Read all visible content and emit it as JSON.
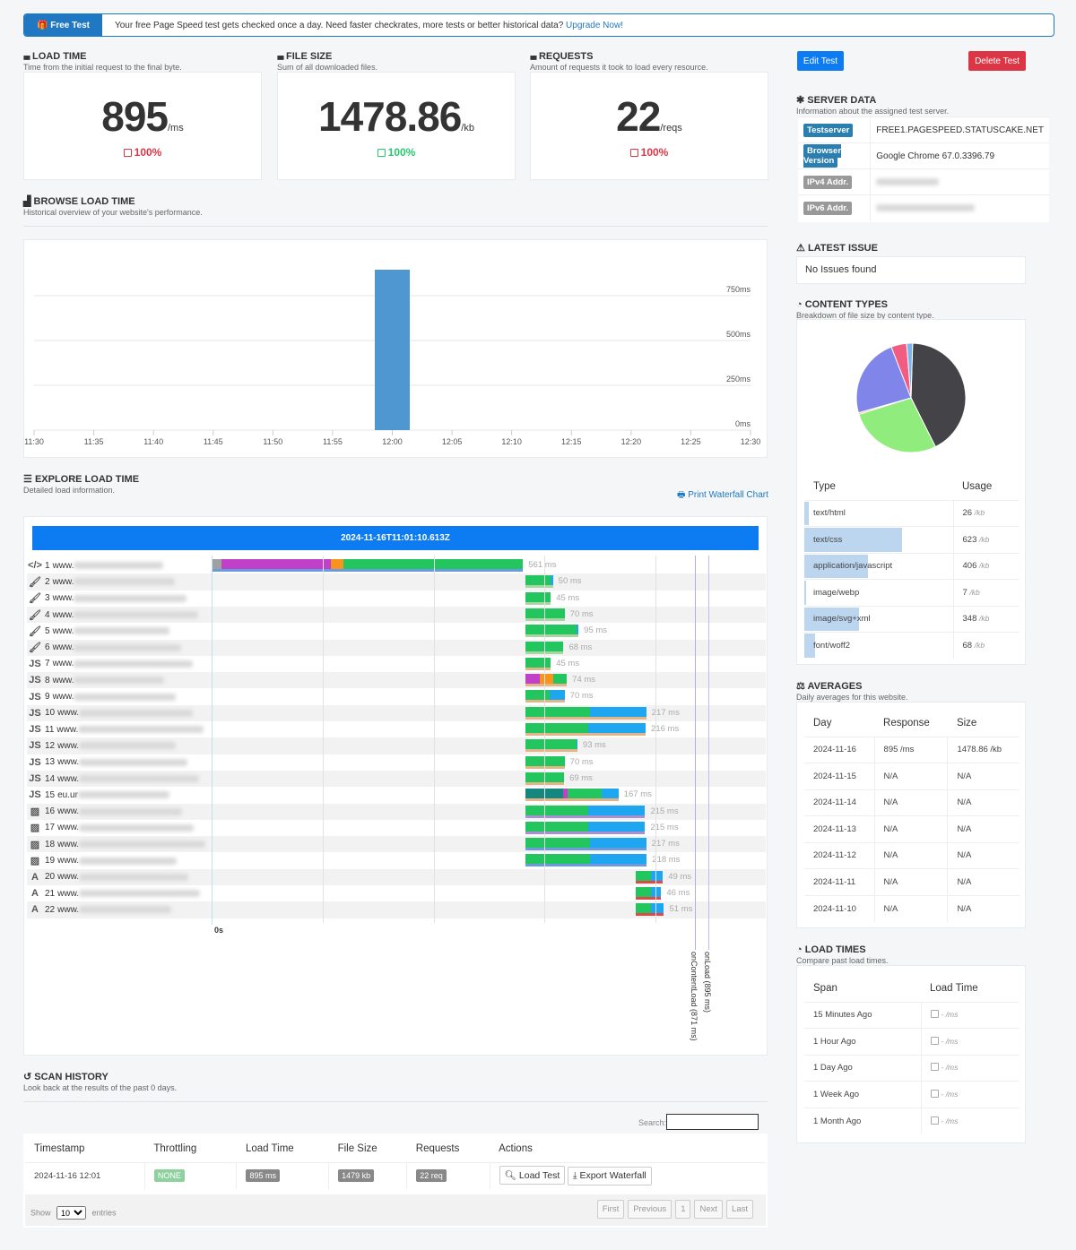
{
  "banner": {
    "tag": "Free Test",
    "message": "Your free Page Speed test gets checked once a day. Need faster checkrates, more tests or better historical data?",
    "link": "Upgrade Now!"
  },
  "stats": [
    {
      "title": "LOAD TIME",
      "subtitle": "Time from the initial request to the final byte.",
      "value": "895",
      "unit": "/ms",
      "change": "100%",
      "trend": "up",
      "color": "#dc3545"
    },
    {
      "title": "FILE SIZE",
      "subtitle": "Sum of all downloaded files.",
      "value": "1478.86",
      "unit": "/kb",
      "change": "100%",
      "trend": "down",
      "color": "#28c76f"
    },
    {
      "title": "REQUESTS",
      "subtitle": "Amount of requests it took to load every resource.",
      "value": "22",
      "unit": "/reqs",
      "change": "100%",
      "trend": "up",
      "color": "#dc3545"
    }
  ],
  "browse": {
    "title": "BROWSE LOAD TIME",
    "subtitle": "Historical overview of your website's performance."
  },
  "chart_data": {
    "type": "bar",
    "x": [
      "12:00"
    ],
    "values": [
      895
    ],
    "xticks": [
      "11:30",
      "11:35",
      "11:40",
      "11:45",
      "11:50",
      "11:55",
      "12:00",
      "12:05",
      "12:10",
      "12:15",
      "12:20",
      "12:25",
      "12:30"
    ],
    "yticks": [
      "0ms",
      "250ms",
      "500ms",
      "750ms"
    ],
    "ylim": [
      0,
      1000
    ],
    "xlim": [
      "11:30",
      "12:30"
    ],
    "grid": true,
    "color": "#4e97d1"
  },
  "explore": {
    "title": "EXPLORE LOAD TIME",
    "subtitle": "Detailed load information.",
    "print_link": "Print Waterfall Chart"
  },
  "waterfall": {
    "timestamp": "2024-11-16T11:01:10.613Z",
    "zero_label": "0s",
    "on_content_load": {
      "label": "onContentLoad (871 ms)",
      "ms": 871
    },
    "on_load": {
      "label": "onLoad (895 ms)",
      "ms": 895
    },
    "colors": {
      "gray": "#a0a0a0",
      "purple": "#c040c8",
      "orange": "#f7941d",
      "green": "#22c55e",
      "blue": "#1ea7f0",
      "teal": "#16877f"
    },
    "rows": [
      {
        "n": "1",
        "icon": "html",
        "host": "www.",
        "start": 0,
        "dur": "561 ms",
        "segs": [
          [
            "gray",
            18
          ],
          [
            "purple",
            197
          ],
          [
            "orange",
            23
          ],
          [
            "green",
            323
          ]
        ],
        "ul": "#6a9be0"
      },
      {
        "n": "2",
        "icon": "css",
        "host": "www.",
        "start": 565,
        "dur": "50 ms",
        "segs": [
          [
            "green",
            46
          ],
          [
            "blue",
            4
          ]
        ],
        "ul": "#a8d5a0"
      },
      {
        "n": "3",
        "icon": "css",
        "host": "www.",
        "start": 566,
        "dur": "45 ms",
        "segs": [
          [
            "green",
            45
          ]
        ],
        "ul": "#a8d5a0"
      },
      {
        "n": "4",
        "icon": "css",
        "host": "www.",
        "start": 566,
        "dur": "70 ms",
        "segs": [
          [
            "green",
            70
          ]
        ],
        "ul": "#a8d5a0"
      },
      {
        "n": "5",
        "icon": "css",
        "host": "www.",
        "start": 566,
        "dur": "95 ms",
        "segs": [
          [
            "green",
            92
          ],
          [
            "blue",
            3
          ]
        ],
        "ul": "#a8d5a0"
      },
      {
        "n": "6",
        "icon": "css",
        "host": "www.",
        "start": 566,
        "dur": "68 ms",
        "segs": [
          [
            "green",
            68
          ]
        ],
        "ul": "#a8d5a0"
      },
      {
        "n": "7",
        "icon": "js",
        "host": "www.",
        "start": 566,
        "dur": "45 ms",
        "segs": [
          [
            "green",
            45
          ]
        ],
        "ul": "#e3b486"
      },
      {
        "n": "8",
        "icon": "js",
        "host": "www.",
        "start": 566,
        "dur": "74 ms",
        "segs": [
          [
            "purple",
            25
          ],
          [
            "orange",
            24
          ],
          [
            "green",
            25
          ]
        ],
        "ul": "#e3b486"
      },
      {
        "n": "9",
        "icon": "js",
        "host": "www.",
        "start": 566,
        "dur": "70 ms",
        "segs": [
          [
            "green",
            43
          ],
          [
            "blue",
            27
          ]
        ],
        "ul": "#e3b486"
      },
      {
        "n": "10",
        "icon": "js",
        "host": "www.",
        "start": 566,
        "dur": "217 ms",
        "segs": [
          [
            "green",
            115
          ],
          [
            "blue",
            102
          ]
        ],
        "ul": "#e3b486"
      },
      {
        "n": "11",
        "icon": "js",
        "host": "www.",
        "start": 566,
        "dur": "216 ms",
        "segs": [
          [
            "green",
            113
          ],
          [
            "blue",
            103
          ]
        ],
        "ul": "#e3b486"
      },
      {
        "n": "12",
        "icon": "js",
        "host": "www.",
        "start": 566,
        "dur": "93 ms",
        "segs": [
          [
            "green",
            92
          ],
          [
            "blue",
            1
          ]
        ],
        "ul": "#e3b486"
      },
      {
        "n": "13",
        "icon": "js",
        "host": "www.",
        "start": 566,
        "dur": "70 ms",
        "segs": [
          [
            "green",
            70
          ]
        ],
        "ul": "#e3b486"
      },
      {
        "n": "14",
        "icon": "js",
        "host": "www.",
        "start": 566,
        "dur": "69 ms",
        "segs": [
          [
            "green",
            69
          ]
        ],
        "ul": "#e3b486"
      },
      {
        "n": "15",
        "icon": "js",
        "host": "eu.ur",
        "start": 566,
        "dur": "167 ms",
        "segs": [
          [
            "teal",
            67
          ],
          [
            "purple",
            8
          ],
          [
            "green",
            62
          ],
          [
            "blue",
            30
          ]
        ],
        "ul": "#e3b486"
      },
      {
        "n": "16",
        "icon": "img",
        "host": "www.",
        "start": 566,
        "dur": "215 ms",
        "segs": [
          [
            "green",
            113
          ],
          [
            "blue",
            102
          ]
        ],
        "ul": "#a98fd4"
      },
      {
        "n": "17",
        "icon": "img",
        "host": "www.",
        "start": 566,
        "dur": "215 ms",
        "segs": [
          [
            "green",
            113
          ],
          [
            "blue",
            102
          ]
        ],
        "ul": "#a98fd4"
      },
      {
        "n": "18",
        "icon": "img",
        "host": "www.",
        "start": 566,
        "dur": "217 ms",
        "segs": [
          [
            "green",
            115
          ],
          [
            "blue",
            102
          ]
        ],
        "ul": "#6a9be0"
      },
      {
        "n": "19",
        "icon": "img",
        "host": "www.",
        "start": 566,
        "dur": "218 ms",
        "segs": [
          [
            "green",
            115
          ],
          [
            "blue",
            103
          ]
        ],
        "ul": "#6a9be0"
      },
      {
        "n": "20",
        "icon": "font",
        "host": "www.",
        "start": 764,
        "dur": "49 ms",
        "segs": [
          [
            "green",
            27
          ],
          [
            "blue",
            22
          ]
        ],
        "ul": "#e04848"
      },
      {
        "n": "21",
        "icon": "font",
        "host": "www.",
        "start": 764,
        "dur": "46 ms",
        "segs": [
          [
            "green",
            27
          ],
          [
            "blue",
            19
          ]
        ],
        "ul": "#e04848"
      },
      {
        "n": "22",
        "icon": "font",
        "host": "www.",
        "start": 764,
        "dur": "51 ms",
        "segs": [
          [
            "green",
            27
          ],
          [
            "blue",
            24
          ]
        ],
        "ul": "#e04848"
      }
    ]
  },
  "actions": {
    "edit": "Edit Test",
    "delete": "Delete Test"
  },
  "server": {
    "title": "SERVER DATA",
    "subtitle": "Information about the assigned test server.",
    "rows": [
      {
        "label": "Testserver",
        "value": "FREE1.PAGESPEED.STATUSCAKE.NET",
        "color": "#2a7fb0"
      },
      {
        "label": "Browser Version",
        "value": "Google Chrome 67.0.3396.79",
        "color": "#2a7fb0"
      },
      {
        "label": "IPv4 Addr.",
        "value": "",
        "color": "#999999"
      },
      {
        "label": "IPv6 Addr.",
        "value": "",
        "color": "#999999"
      }
    ]
  },
  "latest_issue": {
    "title": "LATEST ISSUE",
    "text": "No Issues found"
  },
  "content_types": {
    "title": "CONTENT TYPES",
    "subtitle": "Breakdown of file size by content type.",
    "headers": [
      "Type",
      "Usage"
    ],
    "unit": "/kb",
    "rows": [
      {
        "type": "text/html",
        "usage": 26,
        "color": "#7cb5ec"
      },
      {
        "type": "text/css",
        "usage": 623,
        "color": "#434348"
      },
      {
        "type": "application/javascript",
        "usage": 406,
        "color": "#90ed7d"
      },
      {
        "type": "image/webp",
        "usage": 7,
        "color": "#f7a35c"
      },
      {
        "type": "image/svg+xml",
        "usage": 348,
        "color": "#8085e9"
      },
      {
        "type": "font/woff2",
        "usage": 68,
        "color": "#f15c80"
      }
    ]
  },
  "averages": {
    "title": "AVERAGES",
    "subtitle": "Daily averages for this website.",
    "headers": [
      "Day",
      "Response",
      "Size"
    ],
    "rows": [
      [
        "2024-11-16",
        "895 /ms",
        "1478.86 /kb"
      ],
      [
        "2024-11-15",
        "N/A",
        "N/A"
      ],
      [
        "2024-11-14",
        "N/A",
        "N/A"
      ],
      [
        "2024-11-13",
        "N/A",
        "N/A"
      ],
      [
        "2024-11-12",
        "N/A",
        "N/A"
      ],
      [
        "2024-11-11",
        "N/A",
        "N/A"
      ],
      [
        "2024-11-10",
        "N/A",
        "N/A"
      ]
    ]
  },
  "load_times": {
    "title": "LOAD TIMES",
    "subtitle": "Compare past load times.",
    "headers": [
      "Span",
      "Load Time"
    ],
    "value": "- /ms",
    "rows": [
      "15 Minutes Ago",
      "1 Hour Ago",
      "1 Day Ago",
      "1 Week Ago",
      "1 Month Ago"
    ]
  },
  "scan": {
    "title": "SCAN HISTORY",
    "subtitle": "Look back at the results of the past 0 days.",
    "search_label": "Search:",
    "headers": [
      "Timestamp",
      "Throttling",
      "Load Time",
      "File Size",
      "Requests",
      "Actions"
    ],
    "row": {
      "timestamp": "2024-11-16 12:01",
      "throttling": "NONE",
      "load": "895 ms",
      "size": "1479 kb",
      "requests": "22 req",
      "load_test": "Load Test",
      "export": "Export Waterfall"
    },
    "show": "Show",
    "entries": "entries",
    "page_size": "10",
    "pager": [
      "First",
      "Previous",
      "1",
      "Next",
      "Last"
    ]
  }
}
